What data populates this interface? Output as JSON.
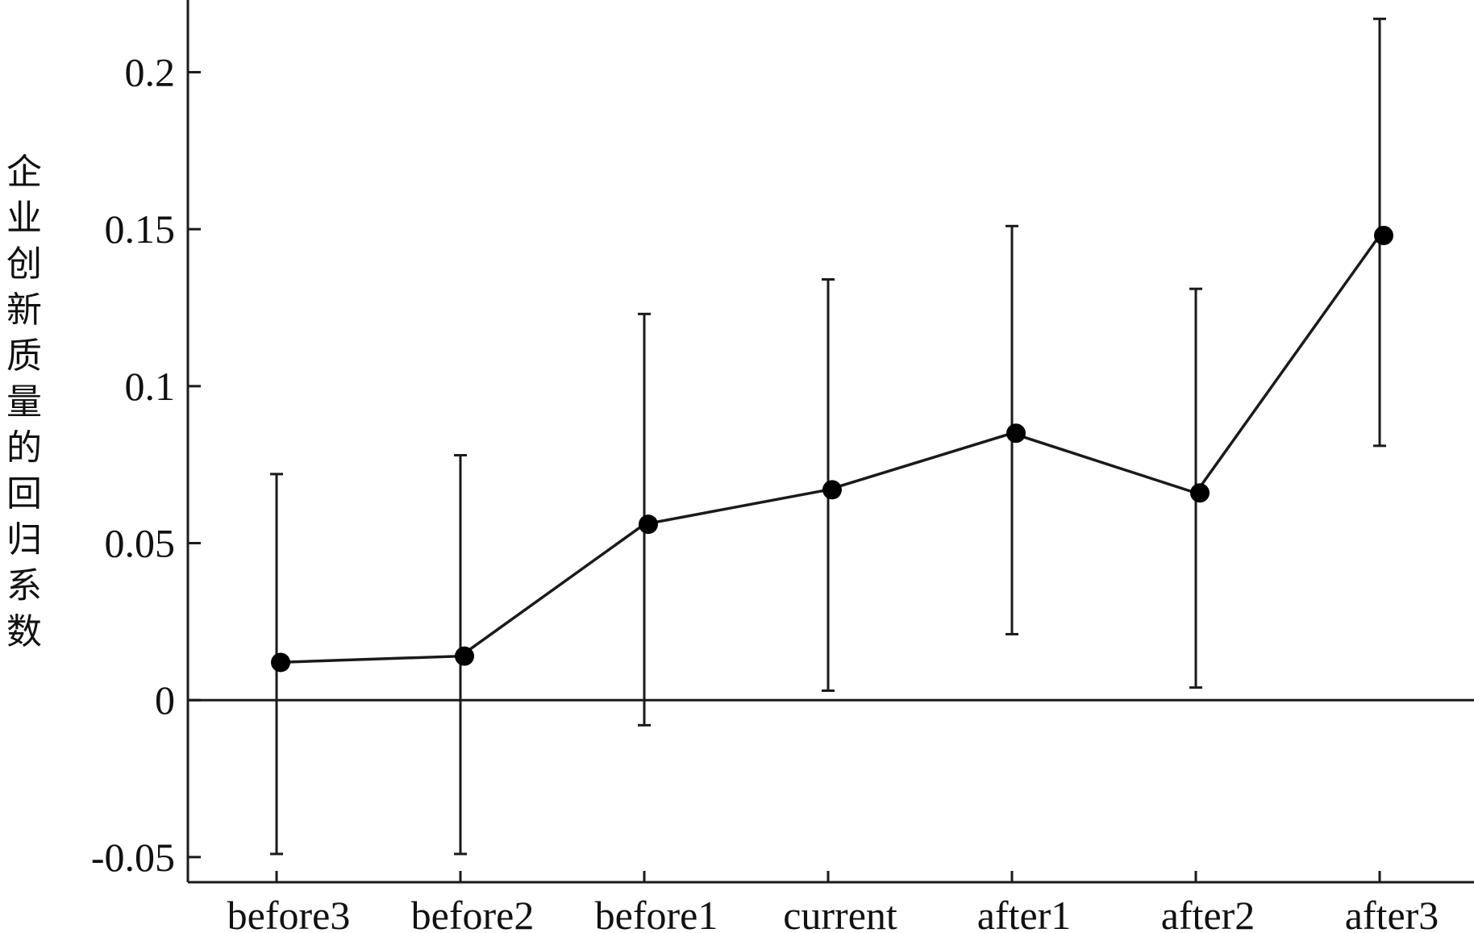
{
  "chart_data": {
    "type": "line",
    "title": "",
    "xlabel": "",
    "ylabel": "企业创新质量的回归系数",
    "categories": [
      "before3",
      "before2",
      "before1",
      "current",
      "after1",
      "after2",
      "after3"
    ],
    "series": [
      {
        "values": [
          0.012,
          0.014,
          0.056,
          0.067,
          0.085,
          0.066,
          0.148
        ],
        "ci_lower": [
          -0.049,
          -0.049,
          -0.008,
          0.003,
          0.021,
          0.004,
          0.081
        ],
        "ci_upper": [
          0.072,
          0.078,
          0.123,
          0.134,
          0.151,
          0.131,
          0.217
        ]
      }
    ],
    "ylim": [
      -0.058,
      0.223
    ],
    "yticks": [
      -0.05,
      0,
      0.05,
      0.1,
      0.15,
      0.2
    ],
    "ytick_labels": [
      "-0.05",
      "0",
      "0.05",
      "0.1",
      "0.15",
      "0.2"
    ],
    "reference_line": 0,
    "grid": false,
    "colors": {
      "line": "#1a1a1a",
      "marker": "#000000",
      "axis": "#1a1a1a"
    }
  }
}
